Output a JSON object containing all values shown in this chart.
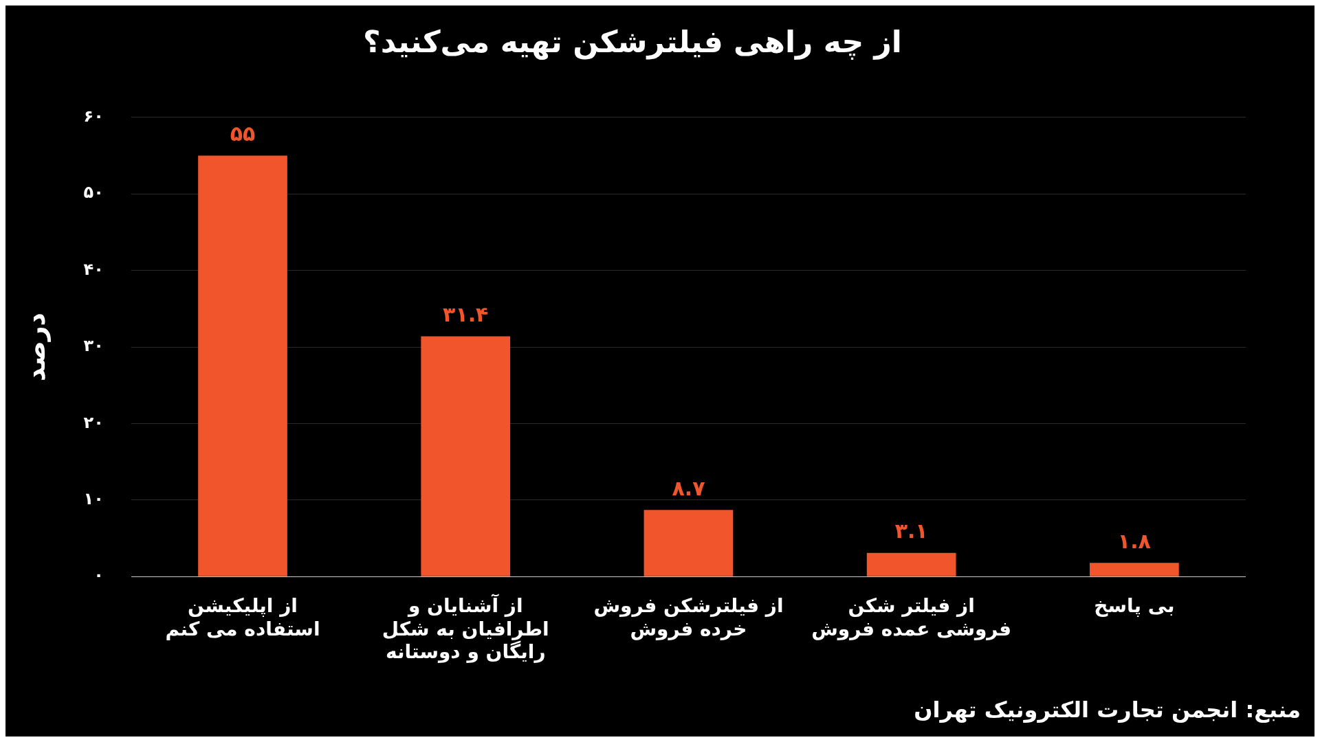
{
  "chart_data": {
    "type": "bar",
    "title": "از چه راهی فیلترشکن تهیه می‌کنید؟",
    "ylabel": "درصد",
    "categories": [
      "از اپلیکیشن استفاده می کنم",
      "از آشنایان و اطرافیان به شکل رایگان و دوستانه",
      "از فیلترشکن فروش خرده فروش",
      "از فیلتر شکن فروشی عمده فروش",
      "بی پاسخ"
    ],
    "values": [
      55,
      31.4,
      8.7,
      3.1,
      1.8
    ],
    "value_labels": [
      "۵۵",
      "۳۱.۴",
      "۸.۷",
      "۳.۱",
      "۱.۸"
    ],
    "color": "#f1552b",
    "ylim": [
      0,
      60
    ],
    "yticks": [
      {
        "value": 0,
        "label": "۰"
      },
      {
        "value": 10,
        "label": "۱۰"
      },
      {
        "value": 20,
        "label": "۲۰"
      },
      {
        "value": 30,
        "label": "۳۰"
      },
      {
        "value": 40,
        "label": "۴۰"
      },
      {
        "value": 50,
        "label": "۵۰"
      },
      {
        "value": 60,
        "label": "۶۰"
      }
    ],
    "grid": "y",
    "legend": false,
    "annotations": [
      "منبع: انجمن تجارت الکترونیک تهران"
    ]
  }
}
